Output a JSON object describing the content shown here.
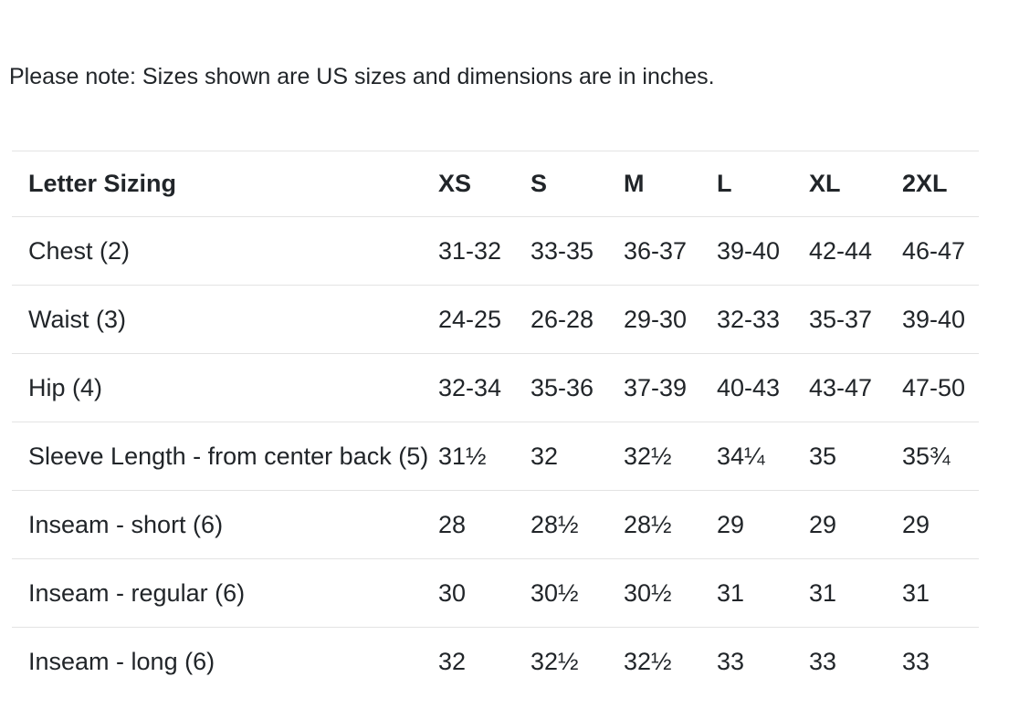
{
  "page": {
    "note": "Please note: Sizes shown are US sizes and dimensions are in inches."
  },
  "size_chart": {
    "columns": [
      "Letter Sizing",
      "XS",
      "S",
      "M",
      "L",
      "XL",
      "2XL"
    ],
    "rows": [
      {
        "label": "Chest (2)",
        "values": [
          "31-32",
          "33-35",
          "36-37",
          "39-40",
          "42-44",
          "46-47"
        ]
      },
      {
        "label": "Waist (3)",
        "values": [
          "24-25",
          "26-28",
          "29-30",
          "32-33",
          "35-37",
          "39-40"
        ]
      },
      {
        "label": "Hip (4)",
        "values": [
          "32-34",
          "35-36",
          "37-39",
          "40-43",
          "43-47",
          "47-50"
        ]
      },
      {
        "label": "Sleeve Length - from center back (5)",
        "values": [
          "31½",
          "32",
          "32½",
          "34¼",
          "35",
          "35¾"
        ]
      },
      {
        "label": "Inseam - short (6)",
        "values": [
          "28",
          "28½",
          "28½",
          "29",
          "29",
          "29"
        ]
      },
      {
        "label": "Inseam - regular (6)",
        "values": [
          "30",
          "30½",
          "30½",
          "31",
          "31",
          "31"
        ]
      },
      {
        "label": "Inseam - long (6)",
        "values": [
          "32",
          "32½",
          "32½",
          "33",
          "33",
          "33"
        ]
      }
    ]
  },
  "colors": {
    "text": "#212529",
    "border": "#e3e3e3",
    "background": "#ffffff"
  }
}
